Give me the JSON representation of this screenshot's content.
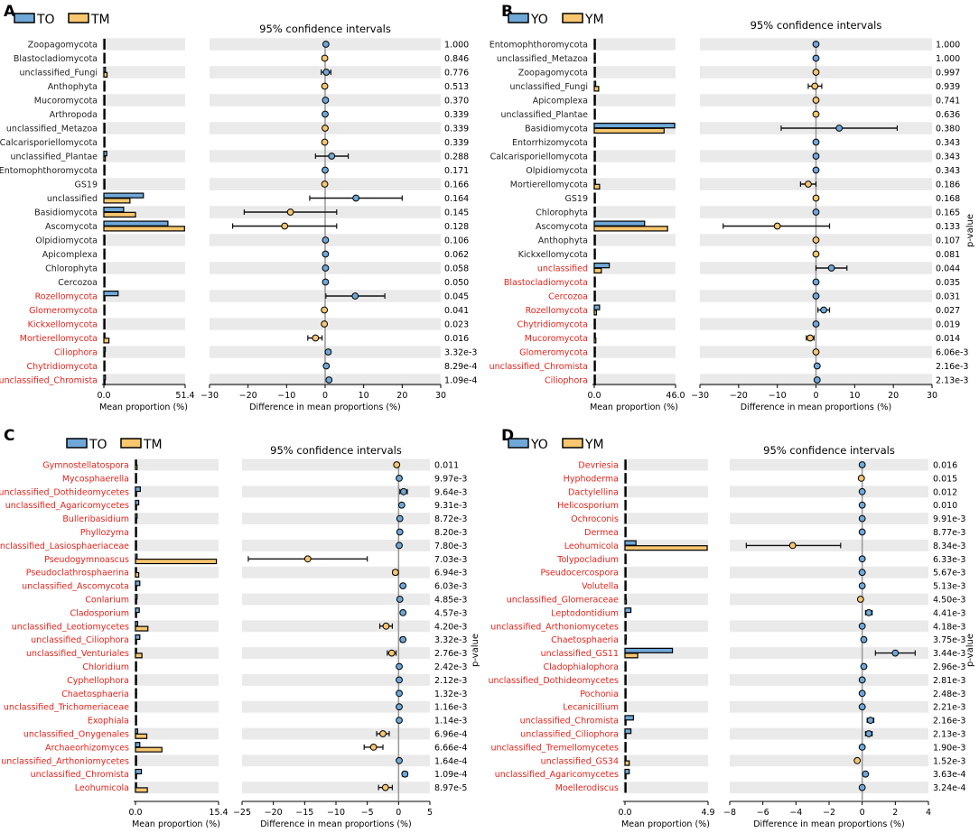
{
  "figure": {
    "colors": {
      "group1": "#6fa8d8",
      "group2": "#f8c66f",
      "sig_label": "#e8231b",
      "normal_label": "#222222",
      "stripe": "#eaeaea",
      "ci_line": "#111111",
      "zero_line": "#999999"
    },
    "p_value_axis_label": "p-value"
  },
  "chart_data": [
    {
      "panel": "A",
      "type": "bar",
      "ci_title": "95% confidence intervals",
      "legend": [
        "TO",
        "TM"
      ],
      "bar_xlabel": "Mean proportion (%)",
      "bar_xlim": [
        0,
        51.4
      ],
      "bar_ticks": [
        "0.0",
        "51.4"
      ],
      "ci_xlabel": "Difference in mean proportions (%)",
      "ci_xlim": [
        -30,
        30
      ],
      "ci_ticks": [
        -30,
        -20,
        -10,
        0,
        10,
        20,
        30
      ],
      "categories": [
        "Zoopagomycota",
        "Blastocladiomycota",
        "unclassified_Fungi",
        "Anthophyta",
        "Mucoromycota",
        "Arthropoda",
        "unclassified_Metazoa",
        "Calcarisporiellomycota",
        "unclassified_Plantae",
        "Entomophthoromycota",
        "GS19",
        "unclassified",
        "Basidiomycota",
        "Ascomycota",
        "Olpidiomycota",
        "Apicomplexa",
        "Chlorophyta",
        "Cercozoa",
        "Rozellomycota",
        "Glomeromycota",
        "Kickxellomycota",
        "Mortierellomycota",
        "Ciliophora",
        "Chytridiomycota",
        "unclassified_Chromista"
      ],
      "significant": [
        false,
        false,
        false,
        false,
        false,
        false,
        false,
        false,
        false,
        false,
        false,
        false,
        false,
        false,
        false,
        false,
        false,
        false,
        true,
        true,
        true,
        true,
        true,
        true,
        true
      ],
      "series": [
        {
          "name": "TO",
          "values": [
            0.3,
            0.3,
            1.0,
            0.2,
            0.2,
            0.2,
            0.2,
            0.2,
            1.8,
            0.1,
            0.1,
            25.0,
            12.5,
            40.5,
            0.2,
            0.2,
            0.2,
            0.1,
            9.0,
            0.2,
            0.1,
            0.5,
            0.9,
            0.4,
            1.0
          ]
        },
        {
          "name": "TM",
          "values": [
            0.2,
            0.4,
            2.0,
            0.2,
            0.2,
            0.2,
            0.2,
            0.2,
            0.9,
            0.2,
            0.1,
            16.5,
            20.0,
            51.0,
            0.2,
            0.2,
            0.2,
            0.1,
            0.6,
            0.4,
            0.3,
            3.2,
            0.1,
            0.1,
            0.1
          ]
        }
      ],
      "diff": [
        0.2,
        -0.1,
        0.3,
        -0.1,
        0.1,
        0.0,
        0.0,
        -0.1,
        1.7,
        0.0,
        -0.1,
        8.0,
        -9.0,
        -10.5,
        0.1,
        0.1,
        0.1,
        0.1,
        7.8,
        -0.2,
        -0.2,
        -2.5,
        0.8,
        0.3,
        1.0
      ],
      "ci_low": [
        0.0,
        -0.3,
        -1.0,
        -0.3,
        0.0,
        -0.1,
        -0.1,
        -0.2,
        -2.5,
        -0.1,
        -0.2,
        -4.0,
        -21.0,
        -24.0,
        0.0,
        0.0,
        0.0,
        0.0,
        0.2,
        -0.4,
        -0.4,
        -4.5,
        0.3,
        0.1,
        0.5
      ],
      "ci_high": [
        0.4,
        0.1,
        1.5,
        0.1,
        0.2,
        0.1,
        0.1,
        0.0,
        6.0,
        0.1,
        0.0,
        20.0,
        3.0,
        3.0,
        0.2,
        0.2,
        0.2,
        0.2,
        15.5,
        0.0,
        0.0,
        -0.8,
        1.4,
        0.6,
        1.5
      ],
      "higher": [
        "TO",
        "TM",
        "TO",
        "TM",
        "TO",
        "TO",
        "TM",
        "TM",
        "TO",
        "TO",
        "TM",
        "TO",
        "TM",
        "TM",
        "TO",
        "TO",
        "TO",
        "TO",
        "TO",
        "TM",
        "TM",
        "TM",
        "TO",
        "TO",
        "TO"
      ],
      "p_values": [
        "1.000",
        "0.846",
        "0.776",
        "0.513",
        "0.370",
        "0.339",
        "0.339",
        "0.339",
        "0.288",
        "0.171",
        "0.166",
        "0.164",
        "0.145",
        "0.128",
        "0.106",
        "0.062",
        "0.058",
        "0.050",
        "0.045",
        "0.041",
        "0.023",
        "0.016",
        "3.32e-3",
        "8.29e-4",
        "1.09e-4"
      ]
    },
    {
      "panel": "B",
      "type": "bar",
      "ci_title": "95% confidence intervals",
      "legend": [
        "YO",
        "YM"
      ],
      "bar_xlabel": "Mean proportion (%)",
      "bar_xlim": [
        0,
        46.0
      ],
      "bar_ticks": [
        "0.0",
        "46.0"
      ],
      "ci_xlabel": "Difference in mean proportions (%)",
      "ci_xlim": [
        -30,
        30
      ],
      "ci_ticks": [
        -30,
        -20,
        -10,
        0,
        10,
        20,
        30
      ],
      "categories": [
        "Entomophthoromycota",
        "unclassified_Metazoa",
        "Zoopagomycota",
        "unclassified_Fungi",
        "Apicomplexa",
        "unclassified_Plantae",
        "Basidiomycota",
        "Entorrhizomycota",
        "Calcarisporiellomycota",
        "Olpidiomycota",
        "Mortierellomycota",
        "GS19",
        "Chlorophyta",
        "Ascomycota",
        "Anthophyta",
        "Kickxellomycota",
        "unclassified",
        "Blastocladiomycota",
        "Cercozoa",
        "Rozellomycota",
        "Chytridiomycota",
        "Mucoromycota",
        "Glomeromycota",
        "unclassified_Chromista",
        "Ciliophora"
      ],
      "significant": [
        false,
        false,
        false,
        false,
        false,
        false,
        false,
        false,
        false,
        false,
        false,
        false,
        false,
        false,
        false,
        false,
        true,
        true,
        true,
        true,
        true,
        true,
        true,
        true,
        true
      ],
      "series": [
        {
          "name": "YO",
          "values": [
            0.1,
            0.1,
            0.2,
            0.8,
            0.2,
            0.2,
            45.5,
            0.2,
            0.1,
            0.1,
            0.7,
            0.1,
            0.2,
            28.5,
            0.1,
            0.1,
            8.5,
            0.1,
            0.2,
            3.0,
            0.3,
            0.1,
            0.1,
            0.3,
            0.4
          ]
        },
        {
          "name": "YM",
          "values": [
            0.1,
            0.1,
            0.2,
            2.5,
            0.2,
            0.3,
            39.5,
            0.1,
            0.1,
            0.1,
            3.0,
            0.3,
            0.1,
            41.5,
            0.3,
            0.3,
            4.0,
            0.1,
            0.1,
            1.2,
            0.1,
            0.9,
            0.2,
            0.1,
            0.1
          ]
        },
        {
          "name": "diff",
          "values": [
            0.0,
            0.0,
            0.0,
            -0.3,
            0.0,
            0.0,
            6.0,
            0.0,
            0.0,
            0.0,
            -2.0,
            0.0,
            0.0,
            -10.0,
            0.0,
            0.0,
            4.0,
            0.0,
            0.0,
            2.0,
            0.0,
            -1.5,
            0.0,
            0.3,
            0.3
          ]
        }
      ],
      "diff": [
        0.0,
        0.0,
        0.0,
        -0.3,
        0.0,
        0.0,
        6.0,
        0.0,
        0.0,
        0.0,
        -2.0,
        0.0,
        0.0,
        -10.0,
        0.0,
        0.0,
        4.0,
        0.0,
        0.0,
        2.0,
        0.0,
        -1.5,
        0.0,
        0.3,
        0.3
      ],
      "ci_low": [
        -0.1,
        -0.1,
        -0.1,
        -2.0,
        -0.1,
        -0.1,
        -9.0,
        -0.1,
        -0.1,
        -0.1,
        -4.0,
        -0.1,
        -0.1,
        -24.0,
        -0.1,
        -0.1,
        0.0,
        -0.1,
        -0.1,
        0.5,
        -0.1,
        -2.5,
        -0.1,
        0.0,
        0.0
      ],
      "ci_high": [
        0.1,
        0.1,
        0.1,
        1.5,
        0.1,
        0.1,
        21.0,
        0.1,
        0.1,
        0.1,
        0.0,
        0.1,
        0.1,
        3.5,
        0.1,
        0.1,
        8.0,
        0.1,
        0.1,
        3.5,
        0.1,
        -0.5,
        0.1,
        0.6,
        0.6
      ],
      "higher": [
        "YO",
        "YO",
        "YM",
        "YM",
        "YM",
        "YM",
        "YO",
        "YO",
        "YO",
        "YO",
        "YM",
        "YM",
        "YO",
        "YM",
        "YM",
        "YM",
        "YO",
        "YO",
        "YO",
        "YO",
        "YO",
        "YM",
        "YM",
        "YO",
        "YO"
      ],
      "p_values": [
        "1.000",
        "1.000",
        "0.997",
        "0.939",
        "0.741",
        "0.636",
        "0.380",
        "0.343",
        "0.343",
        "0.343",
        "0.186",
        "0.168",
        "0.165",
        "0.133",
        "0.107",
        "0.081",
        "0.044",
        "0.035",
        "0.031",
        "0.027",
        "0.019",
        "0.014",
        "6.06e-3",
        "2.16e-3",
        "2.13e-3"
      ]
    },
    {
      "panel": "C",
      "type": "bar",
      "ci_title": "95% confidence intervals",
      "legend": [
        "TO",
        "TM"
      ],
      "bar_xlabel": "Mean proportion (%)",
      "bar_xlim": [
        0,
        15.4
      ],
      "bar_ticks": [
        "0.0",
        "15.4"
      ],
      "ci_xlabel": "Difference in mean proportions (%)",
      "ci_xlim": [
        -25,
        5
      ],
      "ci_ticks": [
        -25,
        -20,
        -15,
        -10,
        -5,
        0,
        5
      ],
      "categories": [
        "Gymnostellatospora",
        "Mycosphaerella",
        "unclassified_Dothideomycetes",
        "unclassified_Agaricomycetes",
        "Bulleribasidium",
        "Phyllozyma",
        "unclassified_Lasiosphaeriaceae",
        "Pseudogymnoascus",
        "Pseudoclathrosphaerina",
        "unclassified_Ascomycota",
        "Conlarium",
        "Cladosporium",
        "unclassified_Leotiomycetes",
        "unclassified_Ciliophora",
        "unclassified_Venturiales",
        "Chloridium",
        "Cyphellophora",
        "Chaetosphaeria",
        "unclassified_Trichomeriaceae",
        "Exophiala",
        "unclassified_Onygenales",
        "Archaeorhizomyces",
        "unclassified_Arthoniomycetes",
        "unclassified_Chromista",
        "Leohumicola"
      ],
      "significant": [
        true,
        true,
        true,
        true,
        true,
        true,
        true,
        true,
        true,
        true,
        true,
        true,
        true,
        true,
        true,
        true,
        true,
        true,
        true,
        true,
        true,
        true,
        true,
        true,
        true
      ],
      "series": [
        {
          "name": "TO",
          "values": [
            0.05,
            0.2,
            0.9,
            0.6,
            0.3,
            0.2,
            0.2,
            0.3,
            0.05,
            0.8,
            0.3,
            0.7,
            0.4,
            0.8,
            0.2,
            0.2,
            0.2,
            0.2,
            0.2,
            0.2,
            0.4,
            0.8,
            0.2,
            1.1,
            0.1
          ]
        },
        {
          "name": "TM",
          "values": [
            0.3,
            0.1,
            0.1,
            0.1,
            0.05,
            0.05,
            0.05,
            15.0,
            0.6,
            0.1,
            0.05,
            0.1,
            2.3,
            0.1,
            1.2,
            0.05,
            0.05,
            0.05,
            0.05,
            0.05,
            2.1,
            4.9,
            0.1,
            0.1,
            2.2
          ]
        }
      ],
      "diff": [
        -0.3,
        0.1,
        0.8,
        0.5,
        0.2,
        0.2,
        0.1,
        -14.5,
        -0.5,
        0.7,
        0.2,
        0.7,
        -2.0,
        0.7,
        -1.1,
        0.1,
        0.1,
        0.1,
        0.1,
        0.1,
        -2.5,
        -4.0,
        0.1,
        1.0,
        -2.1
      ],
      "ci_low": [
        -0.5,
        0.0,
        0.2,
        0.3,
        0.0,
        0.0,
        0.0,
        -24.0,
        -0.9,
        0.4,
        0.0,
        0.4,
        -3.0,
        0.3,
        -1.8,
        0.0,
        0.0,
        0.0,
        0.0,
        0.0,
        -3.5,
        -5.5,
        0.0,
        0.6,
        -3.2
      ],
      "ci_high": [
        -0.1,
        0.2,
        1.4,
        0.7,
        0.3,
        0.3,
        0.2,
        -5.0,
        -0.1,
        1.0,
        0.3,
        1.0,
        -1.0,
        1.0,
        -0.4,
        0.2,
        0.2,
        0.2,
        0.2,
        0.2,
        -1.5,
        -2.5,
        0.2,
        1.4,
        -1.0
      ],
      "higher": [
        "TM",
        "TO",
        "TO",
        "TO",
        "TO",
        "TO",
        "TO",
        "TM",
        "TM",
        "TO",
        "TO",
        "TO",
        "TM",
        "TO",
        "TM",
        "TO",
        "TO",
        "TO",
        "TO",
        "TO",
        "TM",
        "TM",
        "TO",
        "TO",
        "TM"
      ],
      "p_values": [
        "0.011",
        "9.97e-3",
        "9.64e-3",
        "9.31e-3",
        "8.72e-3",
        "8.20e-3",
        "7.80e-3",
        "7.03e-3",
        "6.94e-3",
        "6.03e-3",
        "4.85e-3",
        "4.57e-3",
        "4.20e-3",
        "3.32e-3",
        "2.76e-3",
        "2.42e-3",
        "2.12e-3",
        "1.32e-3",
        "1.16e-3",
        "1.14e-3",
        "6.96e-4",
        "6.66e-4",
        "1.64e-4",
        "1.09e-4",
        "8.97e-5"
      ]
    },
    {
      "panel": "D",
      "type": "bar",
      "ci_title": "95% confidence intervals",
      "legend": [
        "YO",
        "YM"
      ],
      "bar_xlabel": "Mean proportion (%)",
      "bar_xlim": [
        0,
        4.9
      ],
      "bar_ticks": [
        "0.0",
        "4.9"
      ],
      "ci_xlabel": "Difference in mean proportions (%)",
      "ci_xlim": [
        -8,
        4
      ],
      "ci_ticks": [
        -8,
        -6,
        -4,
        -2,
        0,
        2,
        4
      ],
      "categories": [
        "Devriesia",
        "Hyphoderma",
        "Dactylellina",
        "Helicosporium",
        "Ochroconis",
        "Dermea",
        "Leohumicola",
        "Tolypocladium",
        "Pseudocercospora",
        "Volutella",
        "unclassified_Glomeraceae",
        "Leptodontidium",
        "unclassified_Arthoniomycetes",
        "Chaetosphaeria",
        "unclassified_GS11",
        "Cladophialophora",
        "unclassified_Dothideomycetes",
        "Pochonia",
        "Lecanicillium",
        "unclassified_Chromista",
        "unclassified_Ciliophora",
        "unclassified_Tremellomycetes",
        "unclassified_GS34",
        "unclassified_Agaricomycetes",
        "Moellerodiscus"
      ],
      "significant": [
        true,
        true,
        true,
        true,
        true,
        true,
        true,
        true,
        true,
        true,
        true,
        true,
        true,
        true,
        true,
        true,
        true,
        true,
        true,
        true,
        true,
        true,
        true,
        true,
        true
      ],
      "series": [
        {
          "name": "YO",
          "values": [
            0.02,
            0.01,
            0.02,
            0.02,
            0.03,
            0.02,
            0.65,
            0.03,
            0.02,
            0.02,
            0.01,
            0.35,
            0.02,
            0.08,
            2.8,
            0.05,
            0.05,
            0.05,
            0.02,
            0.5,
            0.35,
            0.05,
            0.01,
            0.25,
            0.02
          ]
        },
        {
          "name": "YM",
          "values": [
            0.01,
            0.02,
            0.01,
            0.01,
            0.01,
            0.01,
            4.85,
            0.01,
            0.01,
            0.01,
            0.08,
            0.02,
            0.01,
            0.01,
            0.75,
            0.01,
            0.01,
            0.01,
            0.01,
            0.02,
            0.02,
            0.01,
            0.25,
            0.02,
            0.01
          ]
        }
      ],
      "diff": [
        0.0,
        -0.05,
        0.0,
        0.0,
        0.0,
        0.0,
        -4.2,
        0.0,
        0.0,
        0.0,
        -0.1,
        0.4,
        0.0,
        0.1,
        2.0,
        0.1,
        0.0,
        0.0,
        0.0,
        0.5,
        0.4,
        0.0,
        -0.3,
        0.2,
        0.0
      ],
      "ci_low": [
        -0.05,
        -0.1,
        -0.05,
        -0.05,
        -0.05,
        -0.05,
        -7.0,
        -0.05,
        -0.05,
        -0.05,
        -0.2,
        0.2,
        -0.05,
        0.0,
        0.8,
        0.0,
        -0.05,
        -0.05,
        -0.05,
        0.3,
        0.2,
        -0.05,
        -0.4,
        0.1,
        -0.05
      ],
      "ci_high": [
        0.05,
        0.0,
        0.05,
        0.05,
        0.05,
        0.05,
        -1.3,
        0.05,
        0.05,
        0.05,
        0.0,
        0.6,
        0.05,
        0.2,
        3.2,
        0.2,
        0.05,
        0.05,
        0.05,
        0.7,
        0.6,
        0.05,
        -0.2,
        0.3,
        0.05
      ],
      "higher": [
        "YO",
        "YM",
        "YO",
        "YO",
        "YO",
        "YO",
        "YM",
        "YO",
        "YO",
        "YO",
        "YM",
        "YO",
        "YO",
        "YO",
        "YO",
        "YO",
        "YO",
        "YO",
        "YO",
        "YO",
        "YO",
        "YO",
        "YM",
        "YO",
        "YO"
      ],
      "p_values": [
        "0.016",
        "0.015",
        "0.012",
        "0.010",
        "9.91e-3",
        "8.77e-3",
        "8.34e-3",
        "6.33e-3",
        "5.67e-3",
        "5.13e-3",
        "4.50e-3",
        "4.41e-3",
        "4.18e-3",
        "3.75e-3",
        "3.44e-3",
        "2.96e-3",
        "2.81e-3",
        "2.48e-3",
        "2.21e-3",
        "2.16e-3",
        "2.13e-3",
        "1.90e-3",
        "1.52e-3",
        "3.63e-4",
        "3.24e-4"
      ]
    }
  ]
}
